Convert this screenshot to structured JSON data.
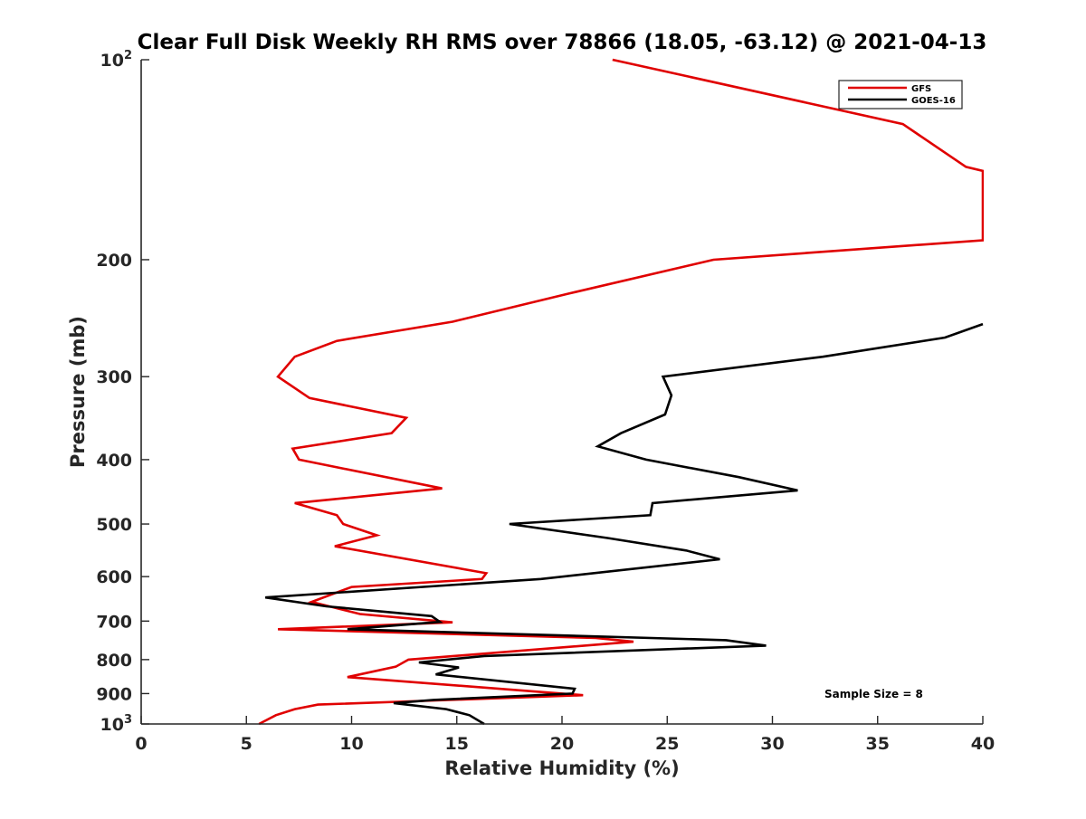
{
  "chart_data": {
    "type": "line",
    "title": "Clear Full Disk Weekly RH RMS over 78866 (18.05, -63.12) @ 2021-04-13",
    "xlabel": "Relative Humidity (%)",
    "ylabel": "Pressure (mb)",
    "xlim": [
      0,
      40
    ],
    "ylim": [
      100,
      1000
    ],
    "yscale": "log",
    "yreversed": true,
    "grid": false,
    "legend_placement": "top-right",
    "x_ticks": [
      {
        "value": 0,
        "label": "0"
      },
      {
        "value": 5,
        "label": "5"
      },
      {
        "value": 10,
        "label": "10"
      },
      {
        "value": 15,
        "label": "15"
      },
      {
        "value": 20,
        "label": "20"
      },
      {
        "value": 25,
        "label": "25"
      },
      {
        "value": 30,
        "label": "30"
      },
      {
        "value": 35,
        "label": "35"
      },
      {
        "value": 40,
        "label": "40"
      }
    ],
    "y_ticks": [
      {
        "value": 100,
        "label": "10",
        "sup": "2"
      },
      {
        "value": 200,
        "label": "200"
      },
      {
        "value": 300,
        "label": "300"
      },
      {
        "value": 400,
        "label": "400"
      },
      {
        "value": 500,
        "label": "500"
      },
      {
        "value": 600,
        "label": "600"
      },
      {
        "value": 700,
        "label": "700"
      },
      {
        "value": 800,
        "label": "800"
      },
      {
        "value": 900,
        "label": "900"
      },
      {
        "value": 1000,
        "label": "10",
        "sup": "3"
      }
    ],
    "series": [
      {
        "name": "GFS",
        "color": "#e00000",
        "points": [
          [
            22.4,
            100
          ],
          [
            36.2,
            125
          ],
          [
            39.2,
            145
          ],
          [
            40,
            147
          ],
          [
            40,
            187
          ],
          [
            27.2,
            200
          ],
          [
            20.3,
            225
          ],
          [
            14.8,
            248
          ],
          [
            9.3,
            265
          ],
          [
            7.3,
            280
          ],
          [
            6.5,
            300
          ],
          [
            8.0,
            323
          ],
          [
            12.6,
            346
          ],
          [
            11.9,
            365
          ],
          [
            7.2,
            385
          ],
          [
            7.5,
            400
          ],
          [
            14.3,
            442
          ],
          [
            7.3,
            465
          ],
          [
            9.3,
            485
          ],
          [
            9.6,
            500
          ],
          [
            11.2,
            520
          ],
          [
            9.2,
            540
          ],
          [
            16.4,
            593
          ],
          [
            16.2,
            605
          ],
          [
            10.0,
            622
          ],
          [
            8.1,
            655
          ],
          [
            10.4,
            683
          ],
          [
            14.8,
            703
          ],
          [
            6.5,
            720
          ],
          [
            21.6,
            742
          ],
          [
            23.4,
            752
          ],
          [
            12.7,
            800
          ],
          [
            12.1,
            820
          ],
          [
            9.8,
            850
          ],
          [
            21.0,
            905
          ],
          [
            8.4,
            935
          ],
          [
            7.3,
            950
          ],
          [
            6.4,
            970
          ],
          [
            5.6,
            1000
          ]
        ]
      },
      {
        "name": "GOES-16",
        "color": "#000000",
        "points": [
          [
            40,
            250
          ],
          [
            38.2,
            262
          ],
          [
            32.4,
            280
          ],
          [
            24.8,
            300
          ],
          [
            25.2,
            320
          ],
          [
            24.9,
            342
          ],
          [
            22.8,
            365
          ],
          [
            21.7,
            382
          ],
          [
            24.0,
            400
          ],
          [
            28.4,
            425
          ],
          [
            31.2,
            445
          ],
          [
            24.3,
            465
          ],
          [
            24.2,
            485
          ],
          [
            17.5,
            500
          ],
          [
            22.2,
            525
          ],
          [
            25.9,
            548
          ],
          [
            27.5,
            565
          ],
          [
            19.0,
            605
          ],
          [
            5.9,
            645
          ],
          [
            8.8,
            665
          ],
          [
            13.8,
            688
          ],
          [
            14.2,
            702
          ],
          [
            9.8,
            720
          ],
          [
            27.8,
            748
          ],
          [
            29.7,
            762
          ],
          [
            16.3,
            790
          ],
          [
            13.2,
            808
          ],
          [
            15.1,
            822
          ],
          [
            14.0,
            842
          ],
          [
            20.6,
            885
          ],
          [
            20.5,
            900
          ],
          [
            13.9,
            920
          ],
          [
            12.0,
            930
          ],
          [
            14.5,
            950
          ],
          [
            15.6,
            970
          ],
          [
            16.3,
            1000
          ]
        ]
      }
    ],
    "annotations": [
      "Sample Size = 8"
    ]
  }
}
